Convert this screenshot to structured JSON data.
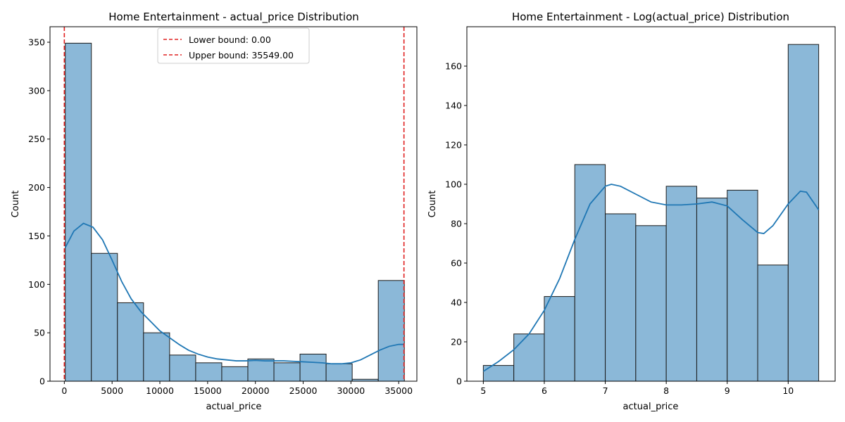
{
  "chart_data": [
    {
      "type": "histogram",
      "title": "Home Entertainment - actual_price Distribution",
      "xlabel": "actual_price",
      "ylabel": "Count",
      "xlim": [
        -1500,
        36900
      ],
      "ylim": [
        0,
        366
      ],
      "xticks": [
        0,
        5000,
        10000,
        15000,
        20000,
        25000,
        30000,
        35000
      ],
      "yticks": [
        0,
        50,
        100,
        150,
        200,
        250,
        300,
        350
      ],
      "bin_edges": [
        100,
        2830,
        5560,
        8290,
        11020,
        13750,
        16480,
        19210,
        21940,
        24670,
        27400,
        30130,
        32860,
        35590
      ],
      "counts": [
        349,
        132,
        81,
        50,
        27,
        19,
        15,
        23,
        19,
        28,
        18,
        2,
        104
      ],
      "bar_color": "#8bb8d8",
      "bar_edge_color": "#1a1a1a",
      "kde": {
        "color": "#1f77b4",
        "x": [
          100,
          1000,
          2000,
          3000,
          4000,
          5000,
          6000,
          7000,
          8000,
          9000,
          10000,
          11000,
          12000,
          13000,
          14000,
          15000,
          16000,
          17000,
          18000,
          19000,
          20000,
          21000,
          22000,
          23000,
          24000,
          25000,
          26000,
          27000,
          28000,
          29000,
          30000,
          31000,
          32000,
          33000,
          34000,
          35000,
          35590
        ],
        "y": [
          138,
          155,
          163,
          159,
          146,
          125,
          103,
          85,
          72,
          62,
          52,
          45,
          38,
          32,
          28,
          25,
          23,
          22,
          21,
          21,
          21.5,
          21,
          21,
          21,
          20.5,
          20,
          19.5,
          19,
          18,
          18,
          19,
          22,
          27,
          32,
          36,
          38,
          38
        ]
      },
      "vlines": [
        {
          "x": 0,
          "label": "Lower bound: 0.00",
          "color": "#e02020"
        },
        {
          "x": 35549,
          "label": "Upper bound: 35549.00",
          "color": "#e02020"
        }
      ],
      "legend_position": "top-center"
    },
    {
      "type": "histogram",
      "title": "Home Entertainment - Log(actual_price) Distribution",
      "xlabel": "actual_price",
      "ylabel": "Count",
      "xlim": [
        4.73,
        10.77
      ],
      "ylim": [
        0,
        180
      ],
      "xticks": [
        5,
        6,
        7,
        8,
        9,
        10
      ],
      "yticks": [
        0,
        20,
        40,
        60,
        80,
        100,
        120,
        140,
        160
      ],
      "bin_edges": [
        5.0,
        5.5,
        6.0,
        6.5,
        7.0,
        7.5,
        8.0,
        8.5,
        9.0,
        9.5,
        10.0,
        10.5
      ],
      "counts": [
        8,
        24,
        43,
        110,
        85,
        79,
        99,
        93,
        97,
        59,
        171
      ],
      "bar_color": "#8bb8d8",
      "bar_edge_color": "#1a1a1a",
      "kde": {
        "color": "#1f77b4",
        "x": [
          5.0,
          5.25,
          5.5,
          5.75,
          6.0,
          6.25,
          6.5,
          6.75,
          7.0,
          7.1,
          7.25,
          7.5,
          7.75,
          8.0,
          8.25,
          8.5,
          8.75,
          9.0,
          9.25,
          9.5,
          9.6,
          9.75,
          10.0,
          10.2,
          10.3,
          10.5
        ],
        "y": [
          5,
          10,
          16,
          24,
          36,
          52,
          72,
          90,
          99,
          100,
          99,
          95,
          91,
          89.5,
          89.5,
          90,
          91,
          89,
          82,
          75.5,
          75,
          79,
          90,
          96.5,
          96,
          87
        ]
      },
      "legend_position": "none"
    }
  ]
}
